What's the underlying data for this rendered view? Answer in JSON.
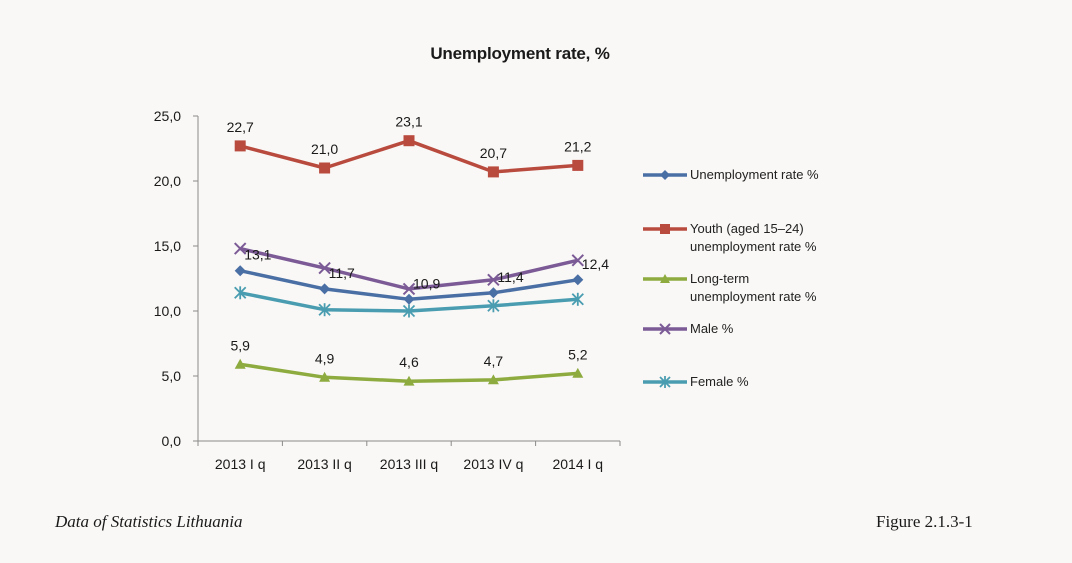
{
  "chart_data": {
    "type": "line",
    "title": "Unemployment rate, %",
    "categories": [
      "2013 I q",
      "2013 II q",
      "2013 III q",
      "2013 IV q",
      "2014 I q"
    ],
    "category_labels": [
      "2013 Ι q",
      "2013 ΙΙ q",
      "2013 ΙΙΙ q",
      "2013 ΙV q",
      "2014 Ι q"
    ],
    "ylim": [
      0,
      25
    ],
    "yticks": [
      "0,0",
      "5,0",
      "10,0",
      "15,0",
      "20,0",
      "25,0"
    ],
    "grid": false,
    "legend_position": "right",
    "series": [
      {
        "name": "Unemployment rate %",
        "values": [
          13.1,
          11.7,
          10.9,
          11.4,
          12.4
        ],
        "labels": [
          "13,1",
          "11,7",
          "10,9",
          "11,4",
          "12,4"
        ],
        "color": "#4a6fa5",
        "marker": "diamond"
      },
      {
        "name": "Youth (aged 15–24)\nunemployment rate %",
        "values": [
          22.7,
          21.0,
          23.1,
          20.7,
          21.2
        ],
        "labels": [
          "22,7",
          "21,0",
          "23,1",
          "20,7",
          "21,2"
        ],
        "color": "#b94a3e",
        "marker": "square"
      },
      {
        "name": "Long-term\nunemployment rate %",
        "values": [
          5.9,
          4.9,
          4.6,
          4.7,
          5.2
        ],
        "labels": [
          "5,9",
          "4,9",
          "4,6",
          "4,7",
          "5,2"
        ],
        "color": "#8dab3f",
        "marker": "triangle"
      },
      {
        "name": "Male %",
        "values": [
          14.8,
          13.3,
          11.7,
          12.4,
          13.9
        ],
        "labels": [],
        "color": "#7b5a96",
        "marker": "x"
      },
      {
        "name": "Female %",
        "values": [
          11.4,
          10.1,
          10.0,
          10.4,
          10.9
        ],
        "labels": [],
        "color": "#4a9db0",
        "marker": "star"
      }
    ]
  },
  "footer": {
    "source": "Data of Statistics Lithuania",
    "figure": "Figure 2.1.3-1"
  }
}
